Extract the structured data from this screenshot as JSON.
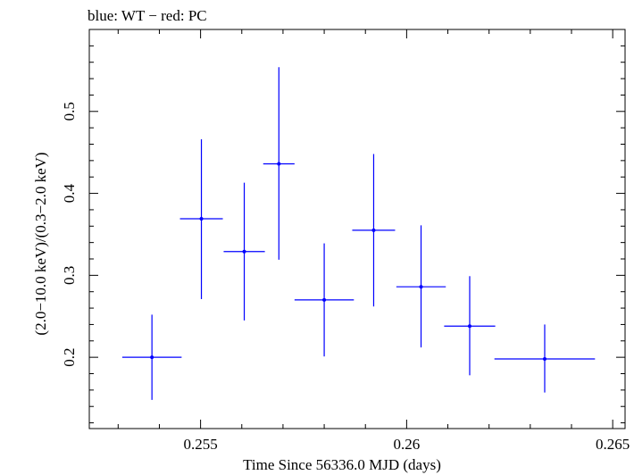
{
  "chart_data": {
    "type": "scatter",
    "title": "blue: WT − red: PC",
    "xlabel": "Time Since 56336.0 MJD (days)",
    "ylabel": "(2.0−10.0 keV)/(0.3−2.0 keV)",
    "xlim": [
      0.2523,
      0.2653
    ],
    "ylim": [
      0.113,
      0.6
    ],
    "x_major_ticks": [
      0.255,
      0.26,
      0.265
    ],
    "x_tick_labels": [
      "0.255",
      "0.26",
      "0.265"
    ],
    "y_major_ticks": [
      0.2,
      0.3,
      0.4,
      0.5
    ],
    "y_tick_labels": [
      "0.2",
      "0.3",
      "0.4",
      "0.5"
    ],
    "x_minor_step": 0.001,
    "y_minor_step": 0.02,
    "grid": false,
    "series": [
      {
        "name": "WT",
        "color": "#0000ff",
        "points": [
          {
            "x": 0.25382,
            "xerr": 0.00072,
            "y": 0.2,
            "ylo": 0.148,
            "yhi": 0.252
          },
          {
            "x": 0.25502,
            "xerr": 0.00052,
            "y": 0.369,
            "ylo": 0.271,
            "yhi": 0.466
          },
          {
            "x": 0.25606,
            "xerr": 0.0005,
            "y": 0.329,
            "ylo": 0.245,
            "yhi": 0.413
          },
          {
            "x": 0.2569,
            "xerr": 0.00038,
            "y": 0.436,
            "ylo": 0.319,
            "yhi": 0.554
          },
          {
            "x": 0.258,
            "xerr": 0.00072,
            "y": 0.27,
            "ylo": 0.201,
            "yhi": 0.339
          },
          {
            "x": 0.2592,
            "xerr": 0.00052,
            "y": 0.355,
            "ylo": 0.262,
            "yhi": 0.448
          },
          {
            "x": 0.26035,
            "xerr": 0.0006,
            "y": 0.286,
            "ylo": 0.212,
            "yhi": 0.361
          },
          {
            "x": 0.26153,
            "xerr": 0.00062,
            "y": 0.238,
            "ylo": 0.178,
            "yhi": 0.299
          },
          {
            "x": 0.26335,
            "xerr": 0.00122,
            "y": 0.198,
            "ylo": 0.157,
            "yhi": 0.24
          }
        ]
      }
    ]
  }
}
